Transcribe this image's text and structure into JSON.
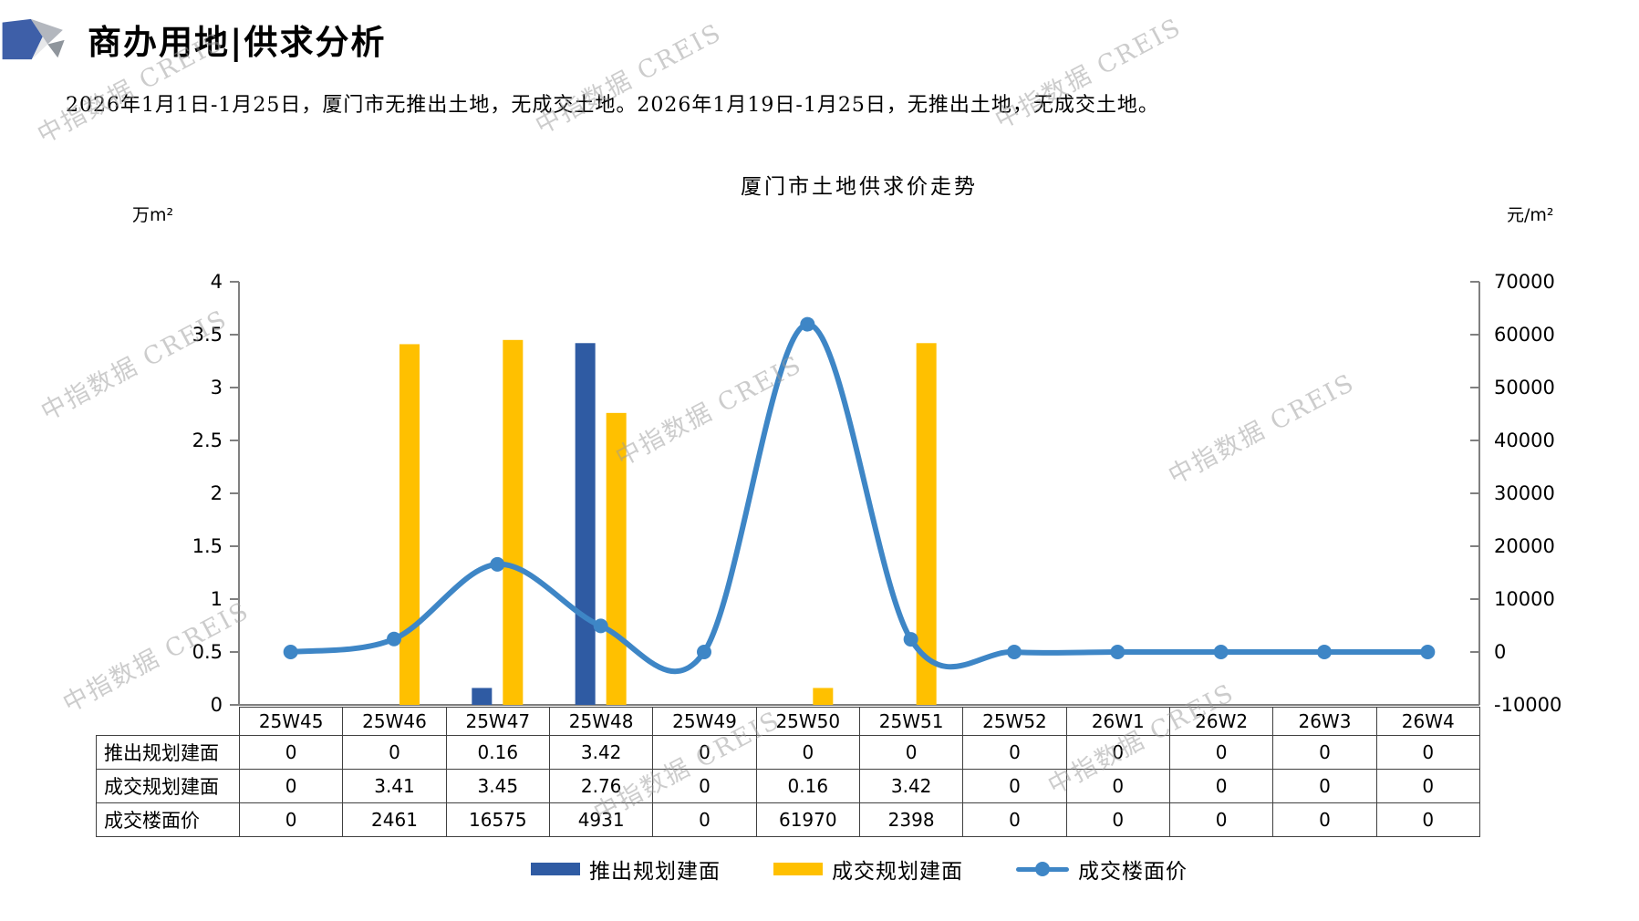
{
  "page": {
    "title": "商办用地|供求分析",
    "subtitle": "2026年1月1日-1月25日，厦门市无推出土地，无成交土地。2026年1月19日-1月25日，无推出土地，无成交土地。",
    "watermark": "中指数据 CREIS"
  },
  "chart_data": {
    "type": "bar+line",
    "title": "厦门市土地供求价走势",
    "categories": [
      "25W45",
      "25W46",
      "25W47",
      "25W48",
      "25W49",
      "25W50",
      "25W51",
      "25W52",
      "26W1",
      "26W2",
      "26W3",
      "26W4"
    ],
    "left_axis": {
      "label": "万m²",
      "min": 0,
      "max": 4,
      "step": 0.5,
      "ticks": [
        "0",
        "0.5",
        "1",
        "1.5",
        "2",
        "2.5",
        "3",
        "3.5",
        "4"
      ]
    },
    "right_axis": {
      "label": "元/m²",
      "min": -10000,
      "max": 70000,
      "step": 10000,
      "ticks": [
        "-10000",
        "0",
        "10000",
        "20000",
        "30000",
        "40000",
        "50000",
        "60000",
        "70000"
      ]
    },
    "grid": false,
    "legend_position": "bottom",
    "series": [
      {
        "name": "推出规划建面",
        "type": "bar",
        "axis": "left",
        "color": "#2F5BA3",
        "values": [
          0,
          0,
          0.16,
          3.42,
          0,
          0,
          0,
          0,
          0,
          0,
          0,
          0
        ]
      },
      {
        "name": "成交规划建面",
        "type": "bar",
        "axis": "left",
        "color": "#FFC000",
        "values": [
          0,
          3.41,
          3.45,
          2.76,
          0,
          0.16,
          3.42,
          0,
          0,
          0,
          0,
          0
        ]
      },
      {
        "name": "成交楼面价",
        "type": "line",
        "axis": "right",
        "color": "#3E86C6",
        "values": [
          0,
          2461,
          16575,
          4931,
          0,
          61970,
          2398,
          0,
          0,
          0,
          0,
          0
        ]
      }
    ]
  },
  "table": {
    "header": [
      "25W45",
      "25W46",
      "25W47",
      "25W48",
      "25W49",
      "25W50",
      "25W51",
      "25W52",
      "26W1",
      "26W2",
      "26W3",
      "26W4"
    ],
    "rows": [
      {
        "label": "推出规划建面",
        "values": [
          "0",
          "0",
          "0.16",
          "3.42",
          "0",
          "0",
          "0",
          "0",
          "0",
          "0",
          "0",
          "0"
        ]
      },
      {
        "label": "成交规划建面",
        "values": [
          "0",
          "3.41",
          "3.45",
          "2.76",
          "0",
          "0.16",
          "3.42",
          "0",
          "0",
          "0",
          "0",
          "0"
        ]
      },
      {
        "label": "成交楼面价",
        "values": [
          "0",
          "2461",
          "16575",
          "4931",
          "0",
          "61970",
          "2398",
          "0",
          "0",
          "0",
          "0",
          "0"
        ]
      }
    ]
  },
  "legend": [
    {
      "label": "推出规划建面",
      "type": "bar",
      "color": "#2F5BA3"
    },
    {
      "label": "成交规划建面",
      "type": "bar",
      "color": "#FFC000"
    },
    {
      "label": "成交楼面价",
      "type": "line",
      "color": "#3E86C6"
    }
  ],
  "logo_colors": {
    "blue": "#3E5FA8",
    "gray_light": "#B3B7BE",
    "gray_dark": "#8F959C",
    "gray_pale": "#E6E7E9"
  }
}
